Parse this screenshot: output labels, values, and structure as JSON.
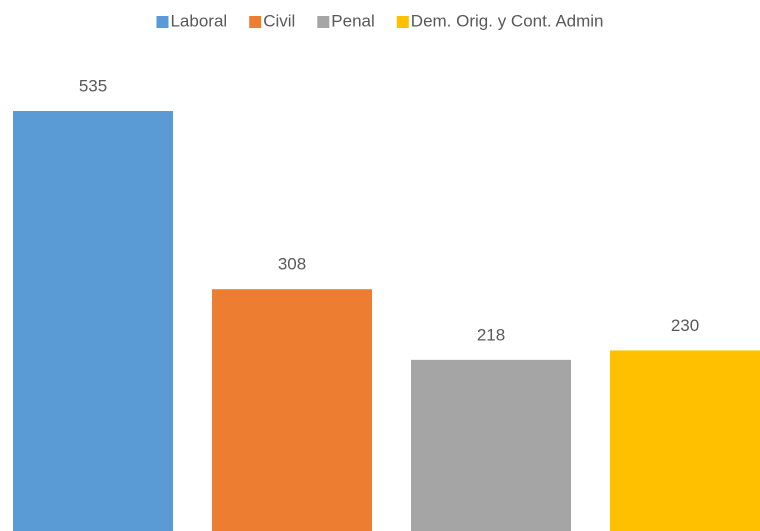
{
  "chart_data": {
    "type": "bar",
    "categories": [
      null
    ],
    "series": [
      {
        "name": "Laboral",
        "color": "#5b9bd5",
        "values": [
          535
        ]
      },
      {
        "name": "Civil",
        "color": "#ed7d31",
        "values": [
          308
        ]
      },
      {
        "name": "Penal",
        "color": "#a5a5a5",
        "values": [
          218
        ]
      },
      {
        "name": "Dem. Orig. y Cont. Admin",
        "color": "#ffc000",
        "values": [
          230
        ]
      }
    ],
    "legend": "top"
  }
}
